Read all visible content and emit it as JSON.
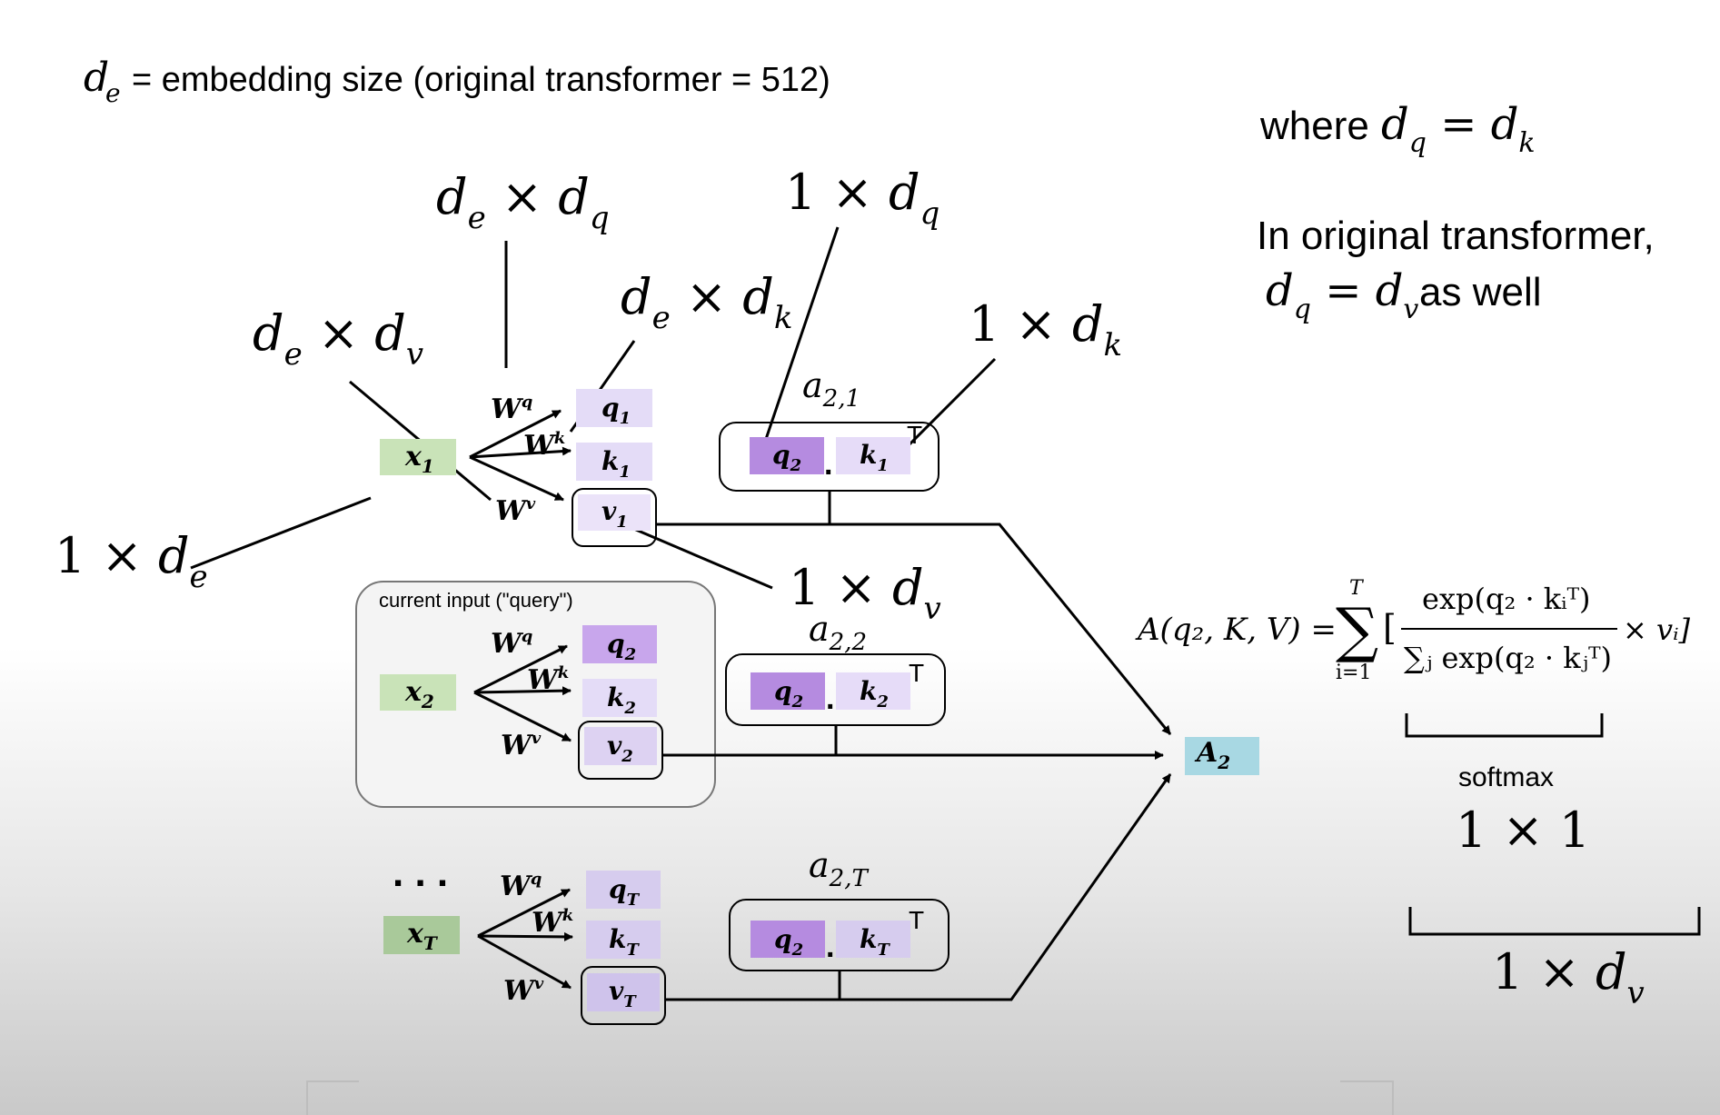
{
  "header": {
    "de_definition": "= embedding size (original transformer = 512)",
    "de_symbol": "d",
    "de_sub": "e"
  },
  "notes": {
    "where_prefix": "where",
    "where_eq": "d_q = d_k",
    "orig_line1": "In original transformer,",
    "orig_line2_tail": "as well"
  },
  "dim_labels": {
    "de_x_dq": "d_e × d_q",
    "one_x_dq": "1 × d_q",
    "de_x_dk": "d_e × d_k",
    "de_x_dv": "d_e × d_v",
    "one_x_dk": "1 × d_k",
    "one_x_de": "1 × d_e",
    "one_x_dv": "1 × d_v",
    "one_x_one": "1 × 1",
    "one_x_dv_bottom": "1 × d_v"
  },
  "rows": [
    {
      "x": "x",
      "sub": "1",
      "q_sub": "1",
      "k_sub": "1",
      "v_sub": "1",
      "a_label": "a",
      "a_sub": "2,1",
      "k_dot_sub": "1"
    },
    {
      "x": "x",
      "sub": "2",
      "q_sub": "2",
      "k_sub": "2",
      "v_sub": "2",
      "a_label": "a",
      "a_sub": "2,2",
      "k_dot_sub": "2"
    },
    {
      "x": "x",
      "sub": "T",
      "q_sub": "T",
      "k_sub": "T",
      "v_sub": "T",
      "a_label": "a",
      "a_sub": "2,T",
      "k_dot_sub": "T"
    }
  ],
  "weights": {
    "wq": "W",
    "wq_sup": "q",
    "wk": "W",
    "wk_sup": "k",
    "wv": "W",
    "wv_sup": "v"
  },
  "current_input_label": "current input (\"query\")",
  "ellipsis": "...",
  "dot": ".",
  "transpose": "T",
  "output": {
    "label": "A",
    "sub": "2"
  },
  "formula": {
    "lhs": "A(q₂, K, V) =",
    "sum_top": "T",
    "sum_bottom": "i=1",
    "numerator": "exp(q₂ · kᵢᵀ)",
    "denominator": "∑ⱼ exp(q₂ · kⱼᵀ)",
    "tail": "× vᵢ]",
    "open_bracket": "["
  },
  "softmax_label": "softmax",
  "colors": {
    "x_fill": "#c9e3b8",
    "xT_fill": "#a9c99a",
    "q_fill": "#c8a6ec",
    "k_fill": "#e4dcf7",
    "v_fill": "#e7def7",
    "q2_dot_fill": "#b58be0",
    "k_dot_fill": "#e6dcf8",
    "a_out_fill": "#a8d8e3",
    "qT_fill": "#d6ccee"
  }
}
